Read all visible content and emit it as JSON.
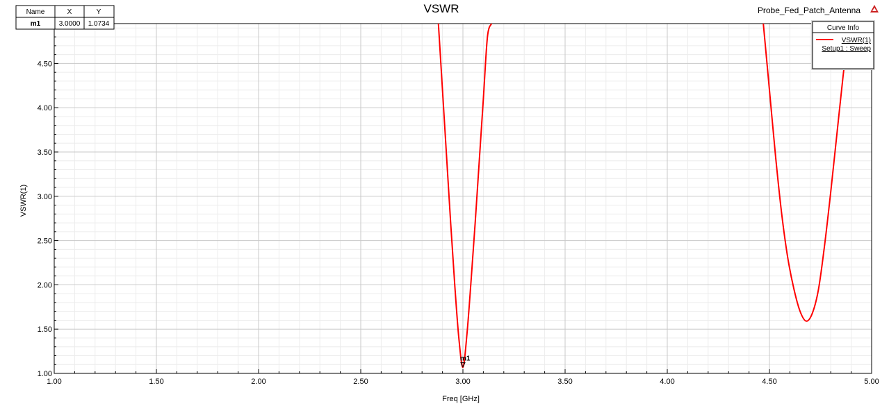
{
  "chart_data": {
    "type": "line",
    "title": "VSWR",
    "design_name": "Probe_Fed_Patch_Antenna",
    "xlabel": "Freq [GHz]",
    "ylabel": "VSWR(1)",
    "xlim": [
      1.0,
      5.0
    ],
    "ylim": [
      1.0,
      4.95
    ],
    "x_ticks": [
      "1.00",
      "1.50",
      "2.00",
      "2.50",
      "3.00",
      "3.50",
      "4.00",
      "4.50",
      "5.00"
    ],
    "y_ticks": [
      "1.00",
      "1.50",
      "2.00",
      "2.50",
      "3.00",
      "3.50",
      "4.00",
      "4.50"
    ],
    "grid": true,
    "series": [
      {
        "name": "VSWR(1)",
        "color": "#ff0000",
        "x": [
          2.88,
          2.9,
          2.92,
          2.94,
          2.96,
          2.98,
          3.0,
          3.02,
          3.04,
          3.06,
          3.08,
          3.1,
          3.12,
          3.14
        ],
        "y": [
          4.95,
          4.2,
          3.45,
          2.7,
          2.0,
          1.4,
          1.07,
          1.45,
          2.05,
          2.7,
          3.4,
          4.1,
          4.8,
          4.95
        ]
      },
      {
        "name": "VSWR(1)",
        "color": "#ff0000",
        "x": [
          4.47,
          4.5,
          4.53,
          4.56,
          4.59,
          4.62,
          4.65,
          4.68,
          4.71,
          4.74,
          4.77,
          4.8,
          4.83,
          4.86,
          4.89
        ],
        "y": [
          4.95,
          4.2,
          3.45,
          2.8,
          2.3,
          1.95,
          1.7,
          1.59,
          1.68,
          1.95,
          2.45,
          3.05,
          3.7,
          4.35,
          4.95
        ]
      }
    ],
    "legend": {
      "title": "Curve Info",
      "entry": "VSWR(1)",
      "sub_entry": "Setup1 : Sweep",
      "position": "top-right"
    },
    "marker": {
      "label": "m1",
      "x": 3.0,
      "y": 1.0734
    },
    "marker_table": {
      "headers": [
        "Name",
        "X",
        "Y"
      ],
      "row": [
        "m1",
        "3.0000",
        "1.0734"
      ]
    }
  }
}
